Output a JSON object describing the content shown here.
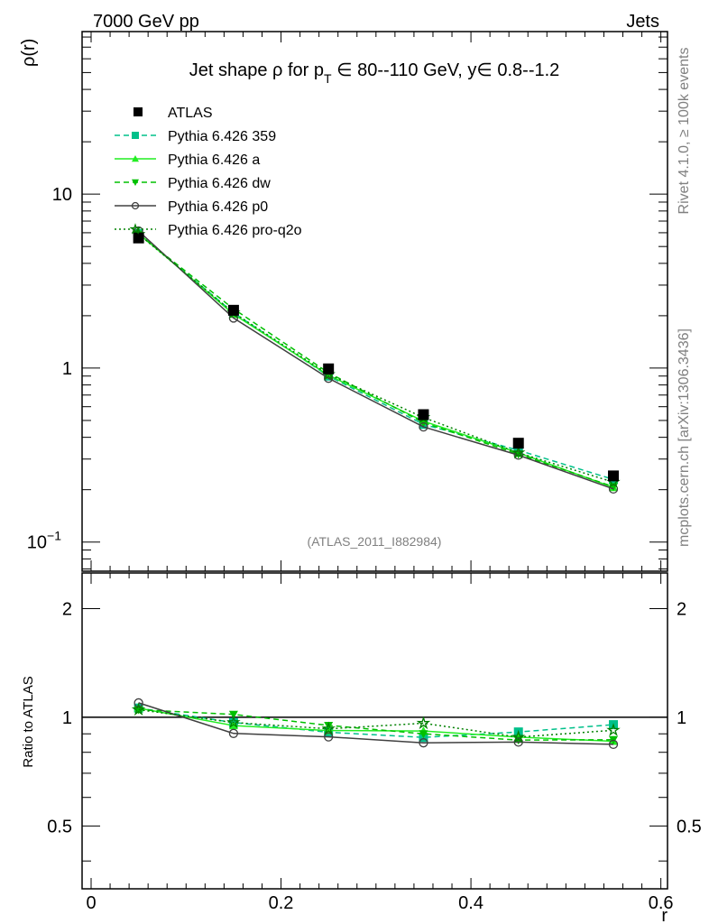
{
  "header": {
    "left": "7000 GeV pp",
    "right": "Jets"
  },
  "side_labels": {
    "rivet": "Rivet 4.1.0, ≥ 100k events",
    "mcplots": "mcplots.cern.ch [arXiv:1306.3436]"
  },
  "analysis_tag": "(ATLAS_2011_I882984)",
  "chart_data": {
    "type": "line",
    "title_parts": {
      "pre": "Jet shape ρ for p",
      "sub": "T",
      "post": " ∈ 80--110 GeV, y∈ 0.8--1.2"
    },
    "xlabel": "r",
    "ylabel": "ρ(r)",
    "ratio_ylabel": "Ratio to ATLAS",
    "xlim": [
      -0.0095,
      0.607
    ],
    "ylim": [
      0.068,
      86
    ],
    "yscale": "log",
    "ratio_ylim": [
      0.335,
      2.51
    ],
    "ratio_yscale": "log",
    "x_ticks": [
      {
        "v": 0,
        "label": "0"
      },
      {
        "v": 0.2,
        "label": "0.2"
      },
      {
        "v": 0.4,
        "label": "0.4"
      },
      {
        "v": 0.6,
        "label": "0.6"
      }
    ],
    "y_ticks": [
      {
        "v": 0.1,
        "label": "10",
        "exp": "−1"
      },
      {
        "v": 1,
        "label": "1",
        "exp": ""
      },
      {
        "v": 10,
        "label": "10",
        "exp": ""
      }
    ],
    "ratio_ticks": [
      {
        "v": 0.5,
        "label": "0.5"
      },
      {
        "v": 1,
        "label": "1"
      },
      {
        "v": 2,
        "label": "2"
      }
    ],
    "legend_position": "top-left",
    "x": [
      0.05,
      0.15,
      0.25,
      0.35,
      0.45,
      0.55
    ],
    "reference": {
      "name": "ATLAS",
      "values": [
        5.6,
        2.15,
        0.99,
        0.54,
        0.37,
        0.24
      ],
      "color": "#000000",
      "marker": "square"
    },
    "series": [
      {
        "name": "Pythia 6.426 359",
        "values": [
          5.94,
          2.08,
          0.9,
          0.475,
          0.337,
          0.229
        ],
        "color": "#00c08a",
        "dash": "6,4",
        "marker": "square"
      },
      {
        "name": "Pythia 6.426 a",
        "values": [
          5.94,
          2.04,
          0.91,
          0.495,
          0.326,
          0.206
        ],
        "color": "#22ee22",
        "dash": "",
        "marker": "triangle-up"
      },
      {
        "name": "Pythia 6.426 dw",
        "values": [
          5.88,
          2.19,
          0.94,
          0.486,
          0.32,
          0.208
        ],
        "color": "#00c000",
        "dash": "6,4",
        "marker": "triangle-down"
      },
      {
        "name": "Pythia 6.426 p0",
        "values": [
          6.14,
          1.94,
          0.874,
          0.459,
          0.316,
          0.202
        ],
        "color": "#404040",
        "dash": "",
        "marker": "circle"
      },
      {
        "name": "Pythia 6.426 pro-q2o",
        "values": [
          5.88,
          2.08,
          0.92,
          0.52,
          0.326,
          0.221
        ],
        "color": "#008000",
        "dash": "2,3",
        "marker": "star"
      }
    ]
  }
}
